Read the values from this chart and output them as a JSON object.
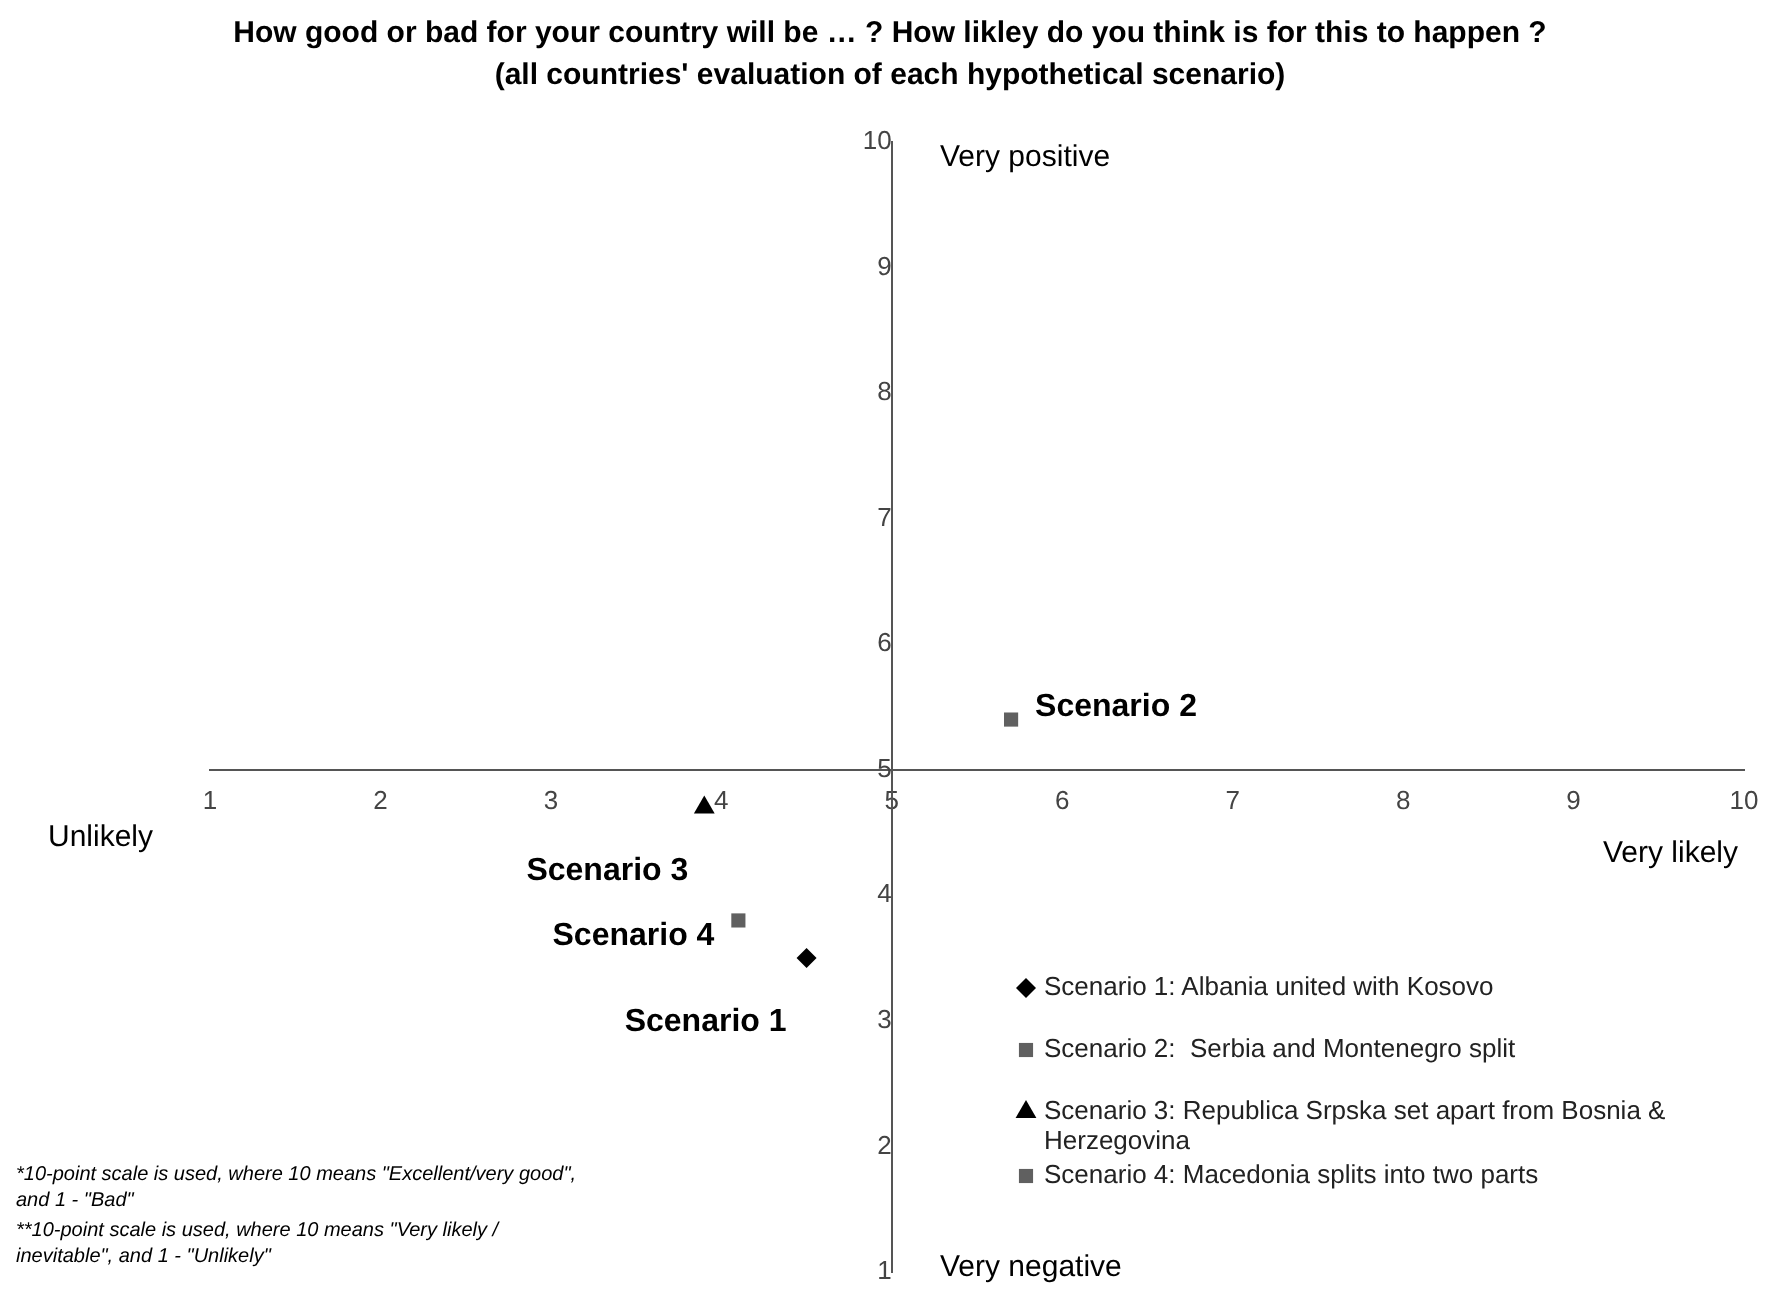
{
  "chart_data": {
    "type": "scatter",
    "title": "How good or bad for your country will be … ? How likley do you think is for this to happen ? (all countries' evaluation of each hypothetical scenario)",
    "xlim": [
      1,
      10
    ],
    "xticks": [
      1,
      2,
      3,
      4,
      5,
      6,
      7,
      8,
      9,
      10
    ],
    "ylim": [
      1,
      10
    ],
    "yticks": [
      1,
      2,
      3,
      4,
      5,
      6,
      7,
      8,
      9,
      10
    ],
    "grid": false,
    "legend": "bottom right",
    "series": [
      {
        "name": "Scenario 1: Albania united with Kosovo",
        "color": "#000000",
        "marker": "diamond",
        "x": [
          4.5
        ],
        "values": [
          3.5
        ]
      },
      {
        "name": "Scenario 2:  Serbia and Montenegro split",
        "color": "#606060",
        "marker": "square",
        "x": [
          5.7
        ],
        "values": [
          5.4
        ]
      },
      {
        "name": "Scenario 3: Republica Srpska set apart from Bosnia & Herzegovina",
        "color": "#000000",
        "marker": "triangle",
        "x": [
          3.9
        ],
        "values": [
          4.7
        ]
      },
      {
        "name": "Scenario 4: Macedonia splits into two parts",
        "color": "#606060",
        "marker": "square",
        "x": [
          4.1
        ],
        "values": [
          3.8
        ]
      }
    ],
    "annotations": [
      {
        "text": "Scenario 1",
        "x": 4.5,
        "y": 3.5
      },
      {
        "text": "Scenario 2",
        "x": 5.7,
        "y": 5.4
      },
      {
        "text": "Scenario 3",
        "x": 3.9,
        "y": 4.7
      },
      {
        "text": "Scenario 4",
        "x": 4.1,
        "y": 3.8
      },
      "Unlikely",
      "Very likely",
      "Very positive",
      "Very negative",
      "*10-point scale is used, where 10 means \"Excellent/very good\", and 1 - \"Bad\"",
      "**10-point scale is used, where 10 means \"Very likely / inevitable\", and 1 - \"Unlikely\""
    ]
  }
}
